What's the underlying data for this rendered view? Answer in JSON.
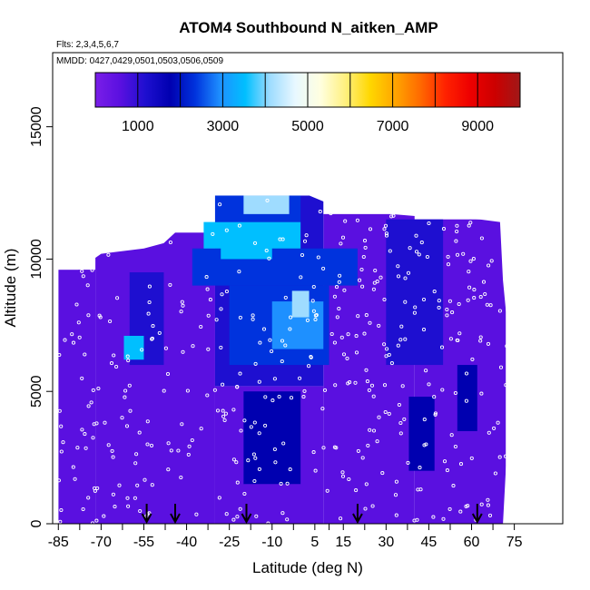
{
  "chart_data": {
    "type": "heatmap",
    "title": "ATOM4 Southbound N_aitken_AMP",
    "annotations": [
      "Flts: 2,3,4,5,6,7",
      "MMDD: 0427,0429,0501,0503,0506,0509"
    ],
    "xlabel": "Latitude (deg N)",
    "ylabel": "Altitude (m)",
    "xlim": [
      -87,
      92
    ],
    "ylim": [
      0,
      17800
    ],
    "x_ticks": [
      -85,
      -70,
      -55,
      -40,
      -25,
      -10,
      5,
      15,
      30,
      45,
      60,
      75
    ],
    "x_tick_labels": [
      "-85",
      "-70",
      "-55",
      "-40",
      "-25",
      "-10",
      "5",
      "15",
      "30",
      "45",
      "60",
      "75"
    ],
    "y_ticks": [
      0,
      5000,
      10000,
      15000
    ],
    "y_tick_labels": [
      "0",
      "5000",
      "10000",
      "15000"
    ],
    "colorbar": {
      "range": [
        0,
        10000
      ],
      "tick_values": [
        1000,
        3000,
        5000,
        7000,
        9000
      ],
      "tick_labels": [
        "1000",
        "3000",
        "5000",
        "7000",
        "9000"
      ],
      "divisions": [
        1000,
        2000,
        3000,
        4000,
        5000,
        6000,
        7000,
        8000,
        9000,
        10000
      ],
      "colors": [
        "#7a1ee8",
        "#5a10e0",
        "#1e0fd0",
        "#0000b0",
        "#0033dd",
        "#1e90ff",
        "#00bfff",
        "#9fdcff",
        "#e8f8ff",
        "#ffffe0",
        "#fff080",
        "#ffd700",
        "#ffa500",
        "#ff6a00",
        "#ff2200",
        "#ee0000",
        "#cc0000",
        "#a01818"
      ]
    },
    "flight_arrows_latitude": [
      -54,
      -44,
      -19,
      20,
      62
    ],
    "domain_outline": [
      [
        -85,
        0
      ],
      [
        -85,
        9600
      ],
      [
        -78,
        9600
      ],
      [
        -70,
        10200
      ],
      [
        -55,
        10400
      ],
      [
        -48,
        10600
      ],
      [
        -42,
        11200
      ],
      [
        -34,
        12000
      ],
      [
        -31,
        12400
      ],
      [
        3,
        12400
      ],
      [
        12,
        12000
      ],
      [
        32,
        11700
      ],
      [
        43,
        11600
      ],
      [
        63,
        11500
      ],
      [
        70,
        11400
      ],
      [
        71,
        9200
      ],
      [
        73,
        7000
      ],
      [
        73,
        4000
      ],
      [
        71,
        0
      ]
    ],
    "cells": [
      {
        "lat": [
          -85,
          -72
        ],
        "alt": [
          0,
          9600
        ],
        "value": 600
      },
      {
        "lat": [
          -72,
          -30
        ],
        "alt": [
          0,
          11000
        ],
        "value": 800
      },
      {
        "lat": [
          -30,
          8
        ],
        "alt": [
          0,
          5200
        ],
        "value": 750
      },
      {
        "lat": [
          8,
          40
        ],
        "alt": [
          0,
          11700
        ],
        "value": 850
      },
      {
        "lat": [
          40,
          72
        ],
        "alt": [
          0,
          11500
        ],
        "value": 700
      },
      {
        "lat": [
          -30,
          8
        ],
        "alt": [
          5200,
          12400
        ],
        "value": 1200
      },
      {
        "lat": [
          -60,
          -48
        ],
        "alt": [
          6000,
          9500
        ],
        "value": 1400
      },
      {
        "lat": [
          -62,
          -55
        ],
        "alt": [
          6200,
          7100
        ],
        "value": 3300
      },
      {
        "lat": [
          -20,
          0
        ],
        "alt": [
          1500,
          5000
        ],
        "value": 1700
      },
      {
        "lat": [
          -25,
          10
        ],
        "alt": [
          6000,
          9000
        ],
        "value": 2200
      },
      {
        "lat": [
          -10,
          8
        ],
        "alt": [
          6600,
          8400
        ],
        "value": 3200
      },
      {
        "lat": [
          -38,
          20
        ],
        "alt": [
          9000,
          10400
        ],
        "value": 2600
      },
      {
        "lat": [
          -34,
          0
        ],
        "alt": [
          10400,
          11400
        ],
        "value": 3600
      },
      {
        "lat": [
          -30,
          0
        ],
        "alt": [
          11400,
          12400
        ],
        "value": 2500
      },
      {
        "lat": [
          -20,
          -4
        ],
        "alt": [
          11700,
          12400
        ],
        "value": 4300
      },
      {
        "lat": [
          -28,
          -10
        ],
        "alt": [
          10000,
          10700
        ],
        "value": 3800
      },
      {
        "lat": [
          30,
          50
        ],
        "alt": [
          6000,
          11500
        ],
        "value": 1100
      },
      {
        "lat": [
          38,
          47
        ],
        "alt": [
          2000,
          4800
        ],
        "value": 1800
      },
      {
        "lat": [
          55,
          62
        ],
        "alt": [
          3500,
          6000
        ],
        "value": 2000
      },
      {
        "lat": [
          -3,
          3
        ],
        "alt": [
          7800,
          8800
        ],
        "value": 4000
      }
    ]
  }
}
